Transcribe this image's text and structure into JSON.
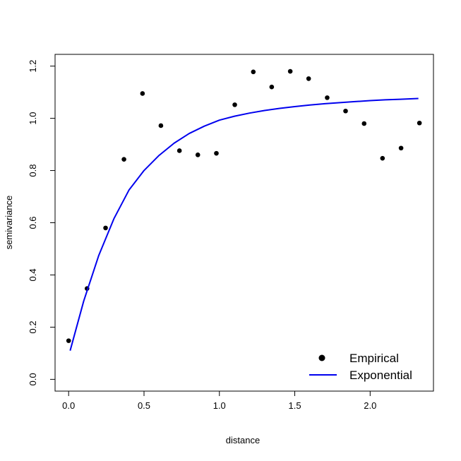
{
  "chart_data": {
    "type": "scatter",
    "title": "",
    "xlabel": "distance",
    "ylabel": "semivariance",
    "xlim": [
      -0.09,
      2.42
    ],
    "ylim": [
      -0.045,
      1.245
    ],
    "xticks": [
      0.0,
      0.5,
      1.0,
      1.5,
      2.0
    ],
    "xtick_labels": [
      "0.0",
      "0.5",
      "1.0",
      "1.5",
      "2.0"
    ],
    "yticks": [
      0.0,
      0.2,
      0.4,
      0.6,
      0.8,
      1.0,
      1.2
    ],
    "ytick_labels": [
      "0.0",
      "0.2",
      "0.4",
      "0.6",
      "0.8",
      "1.0",
      "1.2"
    ],
    "grid": false,
    "legend_position": "bottom-right",
    "series": [
      {
        "name": "Empirical",
        "kind": "points",
        "color": "#000000",
        "x": [
          0.0,
          0.122,
          0.245,
          0.367,
          0.49,
          0.612,
          0.735,
          0.857,
          0.98,
          1.102,
          1.225,
          1.347,
          1.47,
          1.592,
          1.715,
          1.837,
          1.96,
          2.082,
          2.205,
          2.327
        ],
        "y": [
          0.148,
          0.348,
          0.58,
          0.843,
          1.095,
          0.972,
          0.876,
          0.86,
          0.866,
          1.052,
          1.178,
          1.12,
          1.18,
          1.152,
          1.079,
          1.028,
          0.98,
          0.847,
          0.886,
          0.982
        ]
      },
      {
        "name": "Exponential",
        "kind": "line",
        "color": "#0000ee",
        "x": [
          0.01,
          0.1,
          0.2,
          0.3,
          0.4,
          0.5,
          0.6,
          0.7,
          0.8,
          0.9,
          1.0,
          1.1,
          1.2,
          1.3,
          1.4,
          1.5,
          1.6,
          1.7,
          1.8,
          1.9,
          2.0,
          2.1,
          2.2,
          2.32
        ],
        "y": [
          0.11,
          0.3,
          0.475,
          0.615,
          0.725,
          0.8,
          0.858,
          0.905,
          0.942,
          0.97,
          0.993,
          1.008,
          1.02,
          1.03,
          1.038,
          1.045,
          1.051,
          1.056,
          1.06,
          1.064,
          1.068,
          1.071,
          1.073,
          1.076
        ]
      }
    ]
  }
}
